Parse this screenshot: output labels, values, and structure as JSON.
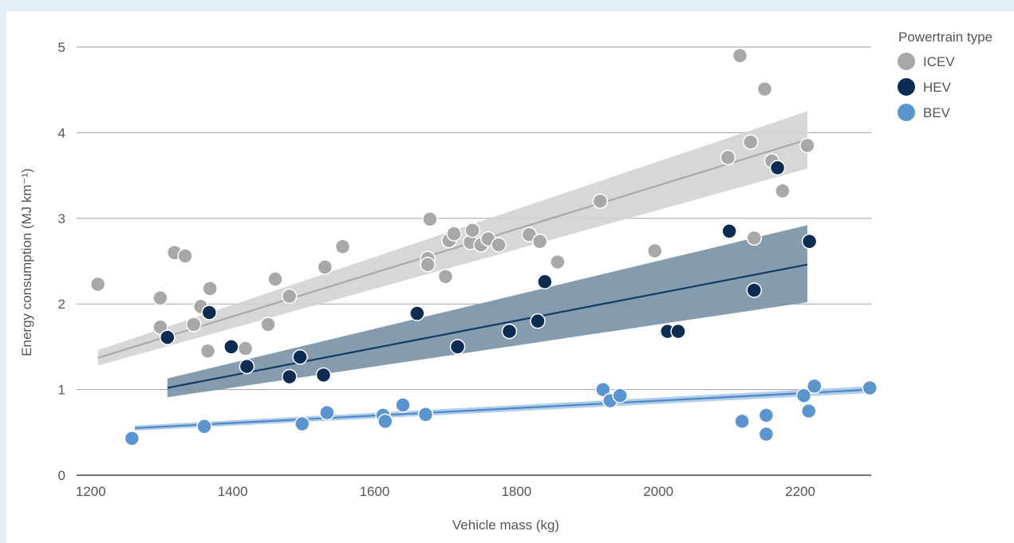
{
  "chart_data": {
    "type": "scatter",
    "xlabel": "Vehicle mass (kg)",
    "ylabel": "Energy consumption (MJ km⁻¹)",
    "xlim": [
      1180,
      2300
    ],
    "ylim": [
      0,
      5
    ],
    "xticks": [
      1200,
      1400,
      1600,
      1800,
      2000,
      2200
    ],
    "yticks": [
      0,
      1,
      2,
      3,
      4,
      5
    ],
    "grid": "horizontal",
    "legend": {
      "title": "Powertrain type",
      "position": "top-right"
    },
    "series": [
      {
        "name": "ICEV",
        "color": "#a8a8a8",
        "band_color": "#d3d3d3",
        "line_color": "#aaaaaa",
        "fit": {
          "x": [
            1210,
            2210
          ],
          "y": [
            1.37,
            3.92
          ],
          "ci_low": [
            1.28,
            3.58
          ],
          "ci_high": [
            1.46,
            4.25
          ]
        },
        "points": [
          [
            1210,
            2.23
          ],
          [
            1298,
            2.07
          ],
          [
            1298,
            1.73
          ],
          [
            1318,
            2.6
          ],
          [
            1333,
            2.56
          ],
          [
            1345,
            1.76
          ],
          [
            1355,
            1.97
          ],
          [
            1365,
            1.45
          ],
          [
            1368,
            2.18
          ],
          [
            1418,
            1.48
          ],
          [
            1450,
            1.76
          ],
          [
            1460,
            2.29
          ],
          [
            1480,
            2.09
          ],
          [
            1530,
            2.43
          ],
          [
            1555,
            2.67
          ],
          [
            1675,
            2.53
          ],
          [
            1675,
            2.46
          ],
          [
            1678,
            2.99
          ],
          [
            1700,
            2.32
          ],
          [
            1705,
            2.74
          ],
          [
            1712,
            2.82
          ],
          [
            1735,
            2.72
          ],
          [
            1738,
            2.86
          ],
          [
            1750,
            2.69
          ],
          [
            1760,
            2.76
          ],
          [
            1775,
            2.69
          ],
          [
            1818,
            2.81
          ],
          [
            1833,
            2.73
          ],
          [
            1858,
            2.49
          ],
          [
            1918,
            3.2
          ],
          [
            1995,
            2.62
          ],
          [
            2098,
            3.71
          ],
          [
            2115,
            4.9
          ],
          [
            2130,
            3.89
          ],
          [
            2135,
            2.77
          ],
          [
            2150,
            4.51
          ],
          [
            2160,
            3.67
          ],
          [
            2175,
            3.32
          ],
          [
            2210,
            3.85
          ]
        ]
      },
      {
        "name": "HEV",
        "color": "#0d2c54",
        "band_color": "#7891a5",
        "line_color": "#123a63",
        "fit": {
          "x": [
            1308,
            2210
          ],
          "y": [
            1.02,
            2.46
          ],
          "ci_low": [
            0.91,
            2.02
          ],
          "ci_high": [
            1.13,
            2.92
          ]
        },
        "points": [
          [
            1308,
            1.61
          ],
          [
            1367,
            1.9
          ],
          [
            1398,
            1.5
          ],
          [
            1420,
            1.27
          ],
          [
            1480,
            1.15
          ],
          [
            1495,
            1.38
          ],
          [
            1528,
            1.17
          ],
          [
            1660,
            1.89
          ],
          [
            1717,
            1.5
          ],
          [
            1790,
            1.68
          ],
          [
            1830,
            1.8
          ],
          [
            1840,
            2.26
          ],
          [
            2013,
            1.68
          ],
          [
            2028,
            1.68
          ],
          [
            2100,
            2.85
          ],
          [
            2135,
            2.16
          ],
          [
            2168,
            3.59
          ],
          [
            2213,
            2.73
          ]
        ]
      },
      {
        "name": "BEV",
        "color": "#5b94cf",
        "band_color": "#a9c8e8",
        "line_color": "#4b88c8",
        "fit": {
          "x": [
            1262,
            2300
          ],
          "y": [
            0.55,
            1.0
          ],
          "ci_low": [
            0.52,
            0.96
          ],
          "ci_high": [
            0.58,
            1.04
          ]
        },
        "points": [
          [
            1258,
            0.43
          ],
          [
            1360,
            0.57
          ],
          [
            1498,
            0.6
          ],
          [
            1533,
            0.73
          ],
          [
            1612,
            0.7
          ],
          [
            1615,
            0.63
          ],
          [
            1640,
            0.82
          ],
          [
            1672,
            0.71
          ],
          [
            1922,
            1.0
          ],
          [
            1932,
            0.87
          ],
          [
            1946,
            0.93
          ],
          [
            2118,
            0.63
          ],
          [
            2152,
            0.7
          ],
          [
            2152,
            0.48
          ],
          [
            2205,
            0.93
          ],
          [
            2212,
            0.75
          ],
          [
            2220,
            1.04
          ],
          [
            2298,
            1.02
          ]
        ]
      }
    ]
  }
}
